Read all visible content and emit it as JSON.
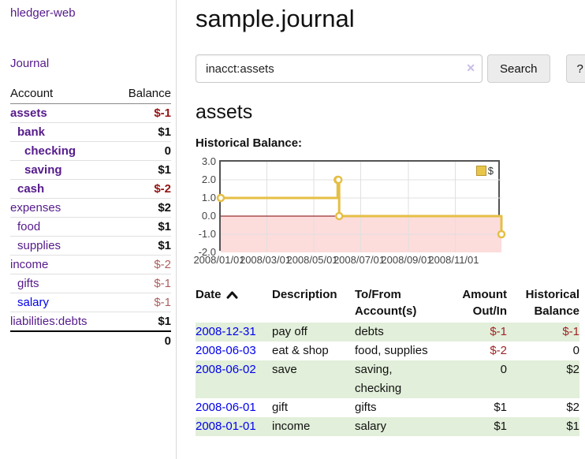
{
  "app": {
    "title": "hledger-web"
  },
  "sidebar": {
    "nav_journal_label": "Journal",
    "accounts_table": {
      "account_header": "Account",
      "balance_header": "Balance",
      "rows": [
        {
          "name": "assets",
          "level": 1,
          "balance": "$-1",
          "bold": true,
          "neg": "strong"
        },
        {
          "name": "bank",
          "level": 2,
          "balance": "$1",
          "bold": true
        },
        {
          "name": "checking",
          "level": 3,
          "balance": "0",
          "bold": true
        },
        {
          "name": "saving",
          "level": 3,
          "balance": "$1",
          "bold": true
        },
        {
          "name": "cash",
          "level": 2,
          "balance": "$-2",
          "bold": true,
          "neg": "strong"
        },
        {
          "name": "expenses",
          "level": 1,
          "balance": "$2"
        },
        {
          "name": "food",
          "level": 2,
          "balance": "$1"
        },
        {
          "name": "supplies",
          "level": 2,
          "balance": "$1"
        },
        {
          "name": "income",
          "level": 1,
          "balance": "$-2",
          "neg": "soft"
        },
        {
          "name": "gifts",
          "level": 2,
          "balance": "$-1",
          "neg": "soft"
        },
        {
          "name": "salary",
          "level": 2,
          "balance": "$-1",
          "neg": "soft",
          "link_style": "unvisited"
        },
        {
          "name": "liabilities:debts",
          "level": 1,
          "balance": "$1"
        }
      ],
      "total": "0"
    }
  },
  "header": {
    "title": "sample.journal"
  },
  "search": {
    "value": "inacct:assets",
    "placeholder": "",
    "clear_icon": "✕",
    "button_label": "Search",
    "help_label": "?"
  },
  "account_page": {
    "title": "assets",
    "chart_label": "Historical Balance:"
  },
  "chart_data": {
    "type": "line",
    "step": true,
    "title": "Historical Balance:",
    "legend": [
      {
        "name": "$",
        "color": "#e8c64a"
      }
    ],
    "x_range": [
      "2008/01/01",
      "2008/12/31"
    ],
    "ylim": [
      -2.0,
      3.0
    ],
    "y_ticks": [
      "3.0",
      "2.0",
      "1.0",
      "0.0",
      "-1.0",
      "-2.0"
    ],
    "x_ticks": [
      "2008/01/01",
      "2008/03/01",
      "2008/05/01",
      "2008/07/01",
      "2008/09/01",
      "2008/11/01"
    ],
    "points": [
      {
        "date": "2008/01/01",
        "value": 1
      },
      {
        "date": "2008/06/01",
        "value": 2
      },
      {
        "date": "2008/06/02",
        "value": 2
      },
      {
        "date": "2008/06/03",
        "value": 0
      },
      {
        "date": "2008/12/31",
        "value": -1
      }
    ],
    "line_color": "#e5bf45",
    "marker_fill": "#ffffff",
    "grid_color": "#e0e0e0",
    "border_color": "#545454",
    "negative_region_color": "#fddcdc",
    "zero_line_color": "#800000",
    "legend_position": "top-right",
    "grid": true
  },
  "register_table": {
    "headers": {
      "date": "Date",
      "description": "Description",
      "accounts": "To/From Account(s)",
      "amount": "Amount Out/In",
      "balance": "Historical Balance"
    },
    "rows": [
      {
        "date": "2008-12-31",
        "description": "pay off",
        "accounts": "debts",
        "amount": "$-1",
        "balance": "$-1",
        "amount_neg": true,
        "balance_neg": true,
        "shade": true
      },
      {
        "date": "2008-06-03",
        "description": "eat & shop",
        "accounts": "food, supplies",
        "amount": "$-2",
        "balance": "0",
        "amount_neg": true,
        "shade": false
      },
      {
        "date": "2008-06-02",
        "description": "save",
        "accounts": "saving, checking",
        "amount": "0",
        "balance": "$2",
        "shade": true
      },
      {
        "date": "2008-06-01",
        "description": "gift",
        "accounts": "gifts",
        "amount": "$1",
        "balance": "$2",
        "shade": false
      },
      {
        "date": "2008-01-01",
        "description": "income",
        "accounts": "salary",
        "amount": "$1",
        "balance": "$1",
        "shade": true
      }
    ]
  },
  "colors": {
    "link_purple": "#551a8b",
    "link_blue": "#0000ee",
    "negative_strong": "#941414",
    "negative_soft": "#ad5f5f",
    "row_shade_green": "#e2efda",
    "chart_gold": "#e5bf45",
    "chart_negative_bg": "#fddcdc",
    "chart_zero_line": "#800000"
  }
}
